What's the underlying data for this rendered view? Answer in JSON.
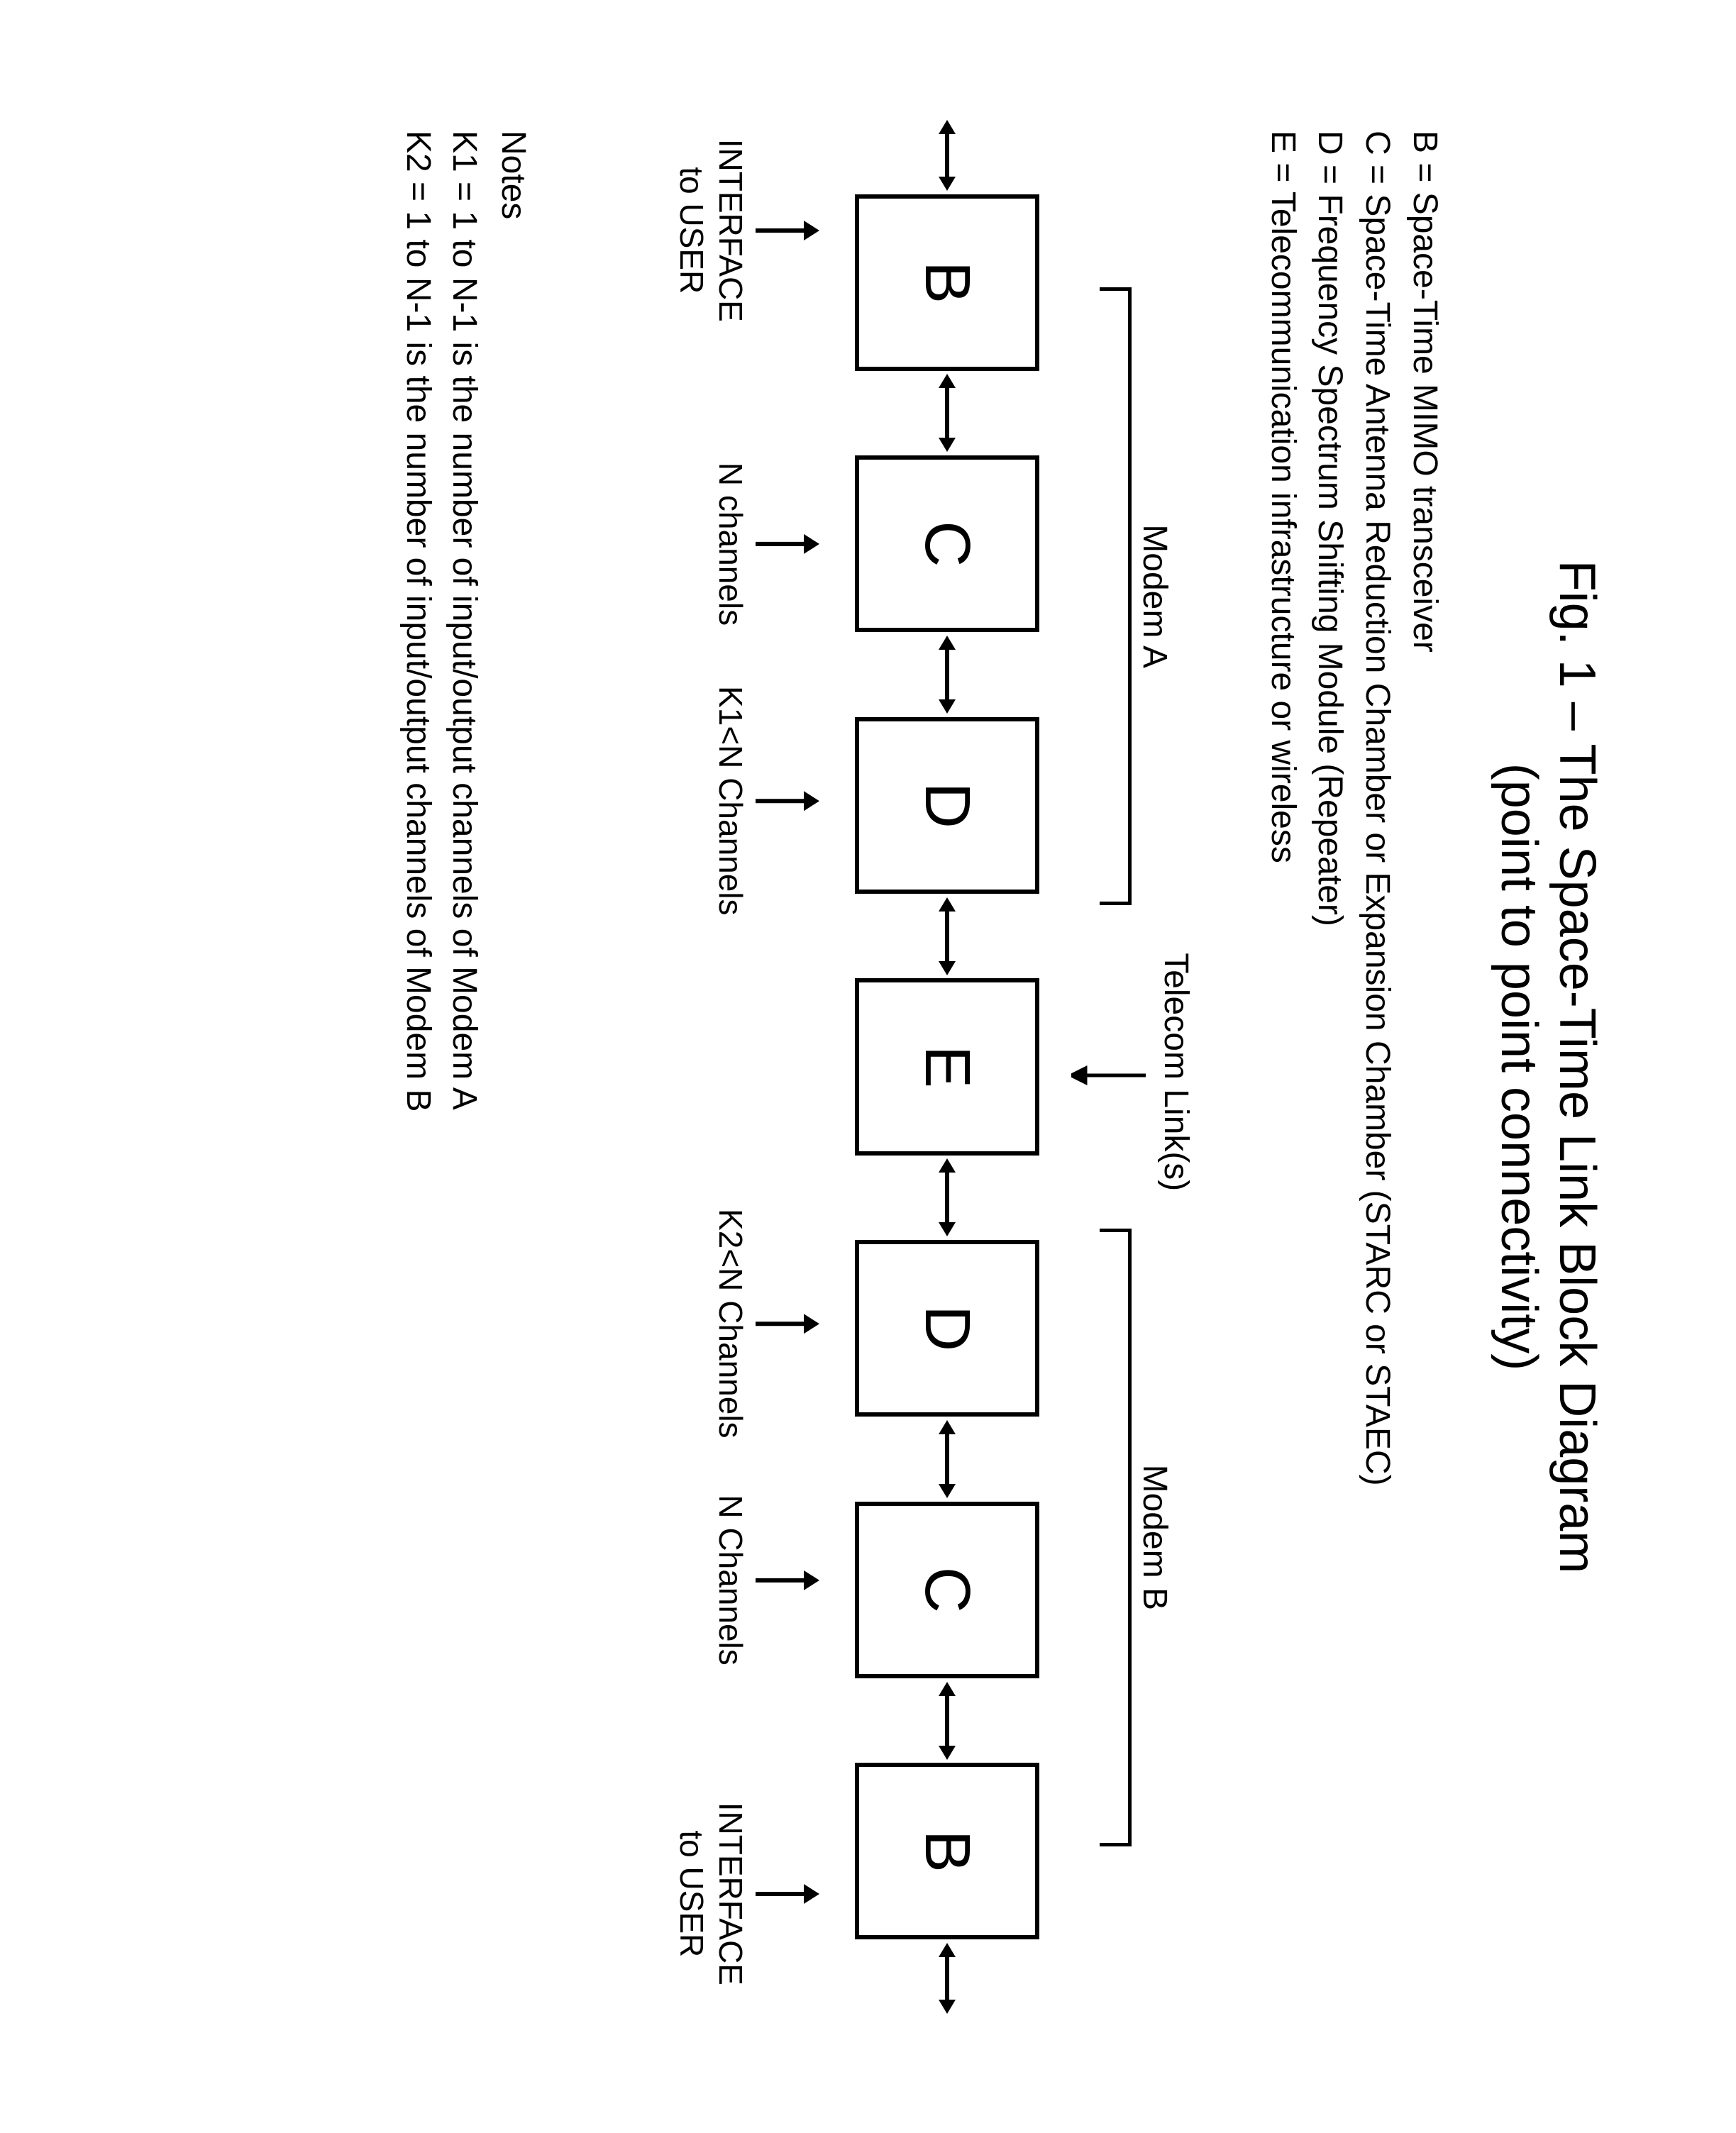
{
  "title": {
    "main": "Fig. 1 – The Space-Time Link Block Diagram",
    "sub": "(point to point connectivity)",
    "fontsize": 72
  },
  "legend": {
    "fontsize": 48,
    "lines": [
      "B = Space-Time MIMO transceiver",
      "C = Space-Time Antenna Reduction Chamber or Expansion Chamber (STARC or STAEC)",
      "D = Frequency Spectrum Shifting Module (Repeater)",
      "E = Telecommunication infrastructure or wireless"
    ]
  },
  "diagram": {
    "blocks": [
      "B",
      "C",
      "D",
      "E",
      "D",
      "C",
      "B"
    ],
    "block_border_width": 6,
    "block_fontsize": 90,
    "modemA_label": "Modem A",
    "modemB_label": "Modem B",
    "telecom_label": "Telecom Link(s)",
    "annotations": [
      {
        "text_lines": [
          "INTERFACE",
          "to USER"
        ],
        "pos_pct": 6.0
      },
      {
        "text_lines": [
          "N channels"
        ],
        "pos_pct": 22.5
      },
      {
        "text_lines": [
          "K1<N Channels"
        ],
        "pos_pct": 36.0
      },
      {
        "text_lines": [
          "K2<N Channels"
        ],
        "pos_pct": 63.5
      },
      {
        "text_lines": [
          "N Channels"
        ],
        "pos_pct": 77.0
      },
      {
        "text_lines": [
          "INTERFACE",
          "to USER"
        ],
        "pos_pct": 93.5
      }
    ],
    "modemA_bracket": {
      "left_pct": 9.0,
      "width_pct": 32.5
    },
    "modemB_bracket": {
      "left_pct": 58.5,
      "width_pct": 32.5
    },
    "telecom_pos": {
      "left_pct": 44.0
    },
    "colors": {
      "stroke": "#000000",
      "background": "#ffffff"
    }
  },
  "notes": {
    "heading": "Notes",
    "lines": [
      "K1 = 1 to N-1 is the number of input/output channels of Modem A",
      "K2 = 1 to N-1 is the number of input/output channels of Modem B"
    ],
    "fontsize": 48
  }
}
